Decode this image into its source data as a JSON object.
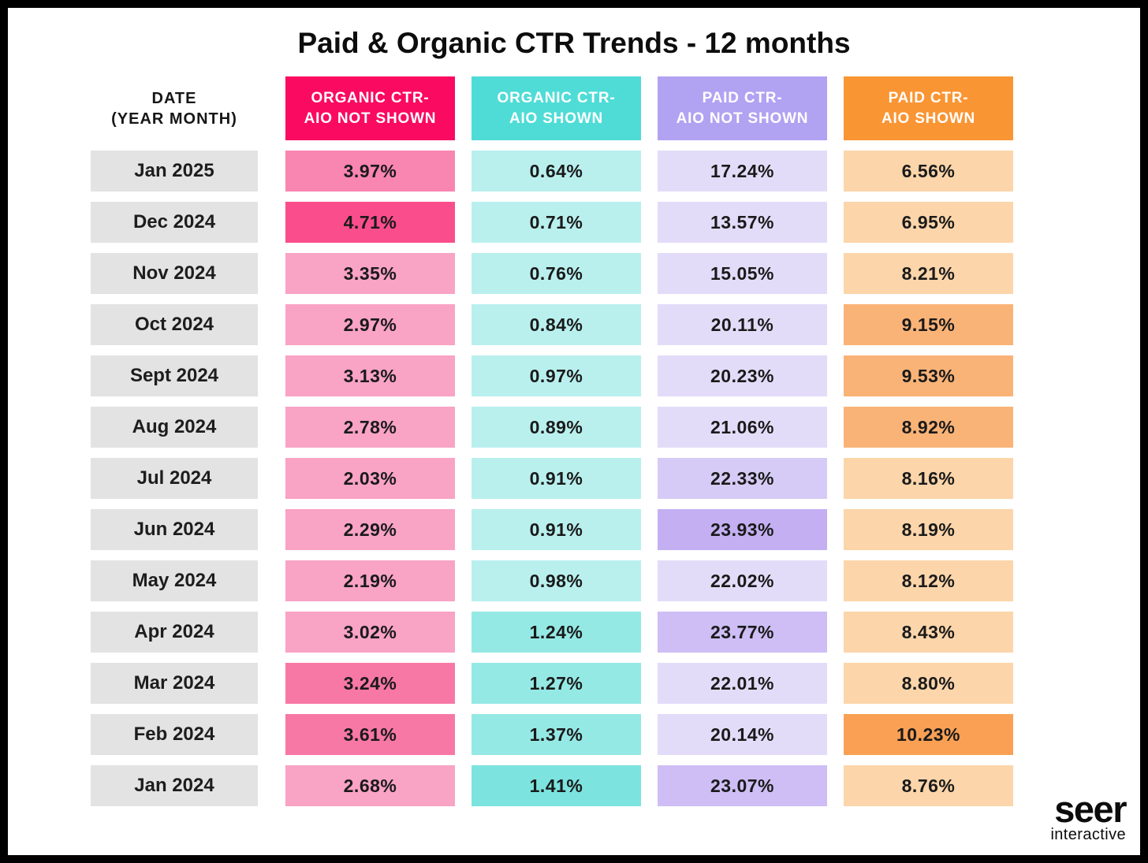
{
  "title": "Paid & Organic CTR Trends - 12 months",
  "logo": {
    "primary": "seer",
    "secondary": "interactive"
  },
  "colors": {
    "background": "#ffffff",
    "canvas_border": "#000000",
    "date_cell_bg": "#e4e3e3",
    "value_text": "#1a1a1a",
    "header_text": "#ffffff"
  },
  "table": {
    "date_header": {
      "line1": "DATE",
      "line2": "(YEAR MONTH)"
    },
    "columns": [
      {
        "label_line1": "ORGANIC CTR-",
        "label_line2": "AIO NOT SHOWN",
        "header_bg": "#fa0a60",
        "shades": {
          "light": "#f9a3c5",
          "medium": "#f985b1",
          "medium_dark": "#f878a5",
          "dark": "#fa4e8c"
        }
      },
      {
        "label_line1": "ORGANIC CTR-",
        "label_line2": "AIO SHOWN",
        "header_bg": "#4fdcd7",
        "shades": {
          "light": "#b9f0ee",
          "medium": "#95e9e5",
          "medium_dark": "#87e6e2",
          "dark": "#7ce3df"
        }
      },
      {
        "label_line1": "PAID CTR-",
        "label_line2": "AIO NOT SHOWN",
        "header_bg": "#b2a2f2",
        "shades": {
          "light": "#e3dcf9",
          "medium": "#d6cbf6",
          "medium_dark": "#cebef5",
          "dark": "#c3aff2"
        }
      },
      {
        "label_line1": "PAID CTR-",
        "label_line2": "AIO SHOWN",
        "header_bg": "#fa9533",
        "shades": {
          "light": "#fcd5aa",
          "medium": "#fab377",
          "medium_dark": "#f9a966",
          "dark": "#f9a055"
        }
      }
    ],
    "rows": [
      {
        "date": "Jan 2025",
        "cells": [
          {
            "value": "3.97%",
            "shade": "medium"
          },
          {
            "value": "0.64%",
            "shade": "light"
          },
          {
            "value": "17.24%",
            "shade": "light"
          },
          {
            "value": "6.56%",
            "shade": "light"
          }
        ]
      },
      {
        "date": "Dec 2024",
        "cells": [
          {
            "value": "4.71%",
            "shade": "dark"
          },
          {
            "value": "0.71%",
            "shade": "light"
          },
          {
            "value": "13.57%",
            "shade": "light"
          },
          {
            "value": "6.95%",
            "shade": "light"
          }
        ]
      },
      {
        "date": "Nov 2024",
        "cells": [
          {
            "value": "3.35%",
            "shade": "light"
          },
          {
            "value": "0.76%",
            "shade": "light"
          },
          {
            "value": "15.05%",
            "shade": "light"
          },
          {
            "value": "8.21%",
            "shade": "light"
          }
        ]
      },
      {
        "date": "Oct 2024",
        "cells": [
          {
            "value": "2.97%",
            "shade": "light"
          },
          {
            "value": "0.84%",
            "shade": "light"
          },
          {
            "value": "20.11%",
            "shade": "light"
          },
          {
            "value": "9.15%",
            "shade": "medium"
          }
        ]
      },
      {
        "date": "Sept 2024",
        "cells": [
          {
            "value": "3.13%",
            "shade": "light"
          },
          {
            "value": "0.97%",
            "shade": "light"
          },
          {
            "value": "20.23%",
            "shade": "light"
          },
          {
            "value": "9.53%",
            "shade": "medium"
          }
        ]
      },
      {
        "date": "Aug 2024",
        "cells": [
          {
            "value": "2.78%",
            "shade": "light"
          },
          {
            "value": "0.89%",
            "shade": "light"
          },
          {
            "value": "21.06%",
            "shade": "light"
          },
          {
            "value": "8.92%",
            "shade": "medium"
          }
        ]
      },
      {
        "date": "Jul 2024",
        "cells": [
          {
            "value": "2.03%",
            "shade": "light"
          },
          {
            "value": "0.91%",
            "shade": "light"
          },
          {
            "value": "22.33%",
            "shade": "medium"
          },
          {
            "value": "8.16%",
            "shade": "light"
          }
        ]
      },
      {
        "date": "Jun 2024",
        "cells": [
          {
            "value": "2.29%",
            "shade": "light"
          },
          {
            "value": "0.91%",
            "shade": "light"
          },
          {
            "value": "23.93%",
            "shade": "dark"
          },
          {
            "value": "8.19%",
            "shade": "light"
          }
        ]
      },
      {
        "date": "May 2024",
        "cells": [
          {
            "value": "2.19%",
            "shade": "light"
          },
          {
            "value": "0.98%",
            "shade": "light"
          },
          {
            "value": "22.02%",
            "shade": "light"
          },
          {
            "value": "8.12%",
            "shade": "light"
          }
        ]
      },
      {
        "date": "Apr 2024",
        "cells": [
          {
            "value": "3.02%",
            "shade": "light"
          },
          {
            "value": "1.24%",
            "shade": "medium"
          },
          {
            "value": "23.77%",
            "shade": "medium_dark"
          },
          {
            "value": "8.43%",
            "shade": "light"
          }
        ]
      },
      {
        "date": "Mar 2024",
        "cells": [
          {
            "value": "3.24%",
            "shade": "medium_dark"
          },
          {
            "value": "1.27%",
            "shade": "medium"
          },
          {
            "value": "22.01%",
            "shade": "light"
          },
          {
            "value": "8.80%",
            "shade": "light"
          }
        ]
      },
      {
        "date": "Feb 2024",
        "cells": [
          {
            "value": "3.61%",
            "shade": "medium_dark"
          },
          {
            "value": "1.37%",
            "shade": "medium"
          },
          {
            "value": "20.14%",
            "shade": "light"
          },
          {
            "value": "10.23%",
            "shade": "dark"
          }
        ]
      },
      {
        "date": "Jan 2024",
        "cells": [
          {
            "value": "2.68%",
            "shade": "light"
          },
          {
            "value": "1.41%",
            "shade": "dark"
          },
          {
            "value": "23.07%",
            "shade": "medium_dark"
          },
          {
            "value": "8.76%",
            "shade": "light"
          }
        ]
      }
    ]
  },
  "chart_data": {
    "type": "table",
    "title": "Paid & Organic CTR Trends - 12 months",
    "categories": [
      "Jan 2025",
      "Dec 2024",
      "Nov 2024",
      "Oct 2024",
      "Sept 2024",
      "Aug 2024",
      "Jul 2024",
      "Jun 2024",
      "May 2024",
      "Apr 2024",
      "Mar 2024",
      "Feb 2024",
      "Jan 2024"
    ],
    "series": [
      {
        "name": "Organic CTR - AIO Not Shown",
        "unit": "%",
        "values": [
          3.97,
          4.71,
          3.35,
          2.97,
          3.13,
          2.78,
          2.03,
          2.29,
          2.19,
          3.02,
          3.24,
          3.61,
          2.68
        ]
      },
      {
        "name": "Organic CTR - AIO Shown",
        "unit": "%",
        "values": [
          0.64,
          0.71,
          0.76,
          0.84,
          0.97,
          0.89,
          0.91,
          0.91,
          0.98,
          1.24,
          1.27,
          1.37,
          1.41
        ]
      },
      {
        "name": "Paid CTR - AIO Not Shown",
        "unit": "%",
        "values": [
          17.24,
          13.57,
          15.05,
          20.11,
          20.23,
          21.06,
          22.33,
          23.93,
          22.02,
          23.77,
          22.01,
          20.14,
          23.07
        ]
      },
      {
        "name": "Paid CTR - AIO Shown",
        "unit": "%",
        "values": [
          6.56,
          6.95,
          8.21,
          9.15,
          9.53,
          8.92,
          8.16,
          8.19,
          8.12,
          8.43,
          8.8,
          10.23,
          8.76
        ]
      }
    ],
    "layout": {
      "heatmap_shading": "darker cell fill = higher value within column",
      "grid": false,
      "legend_position": "column headers"
    }
  }
}
